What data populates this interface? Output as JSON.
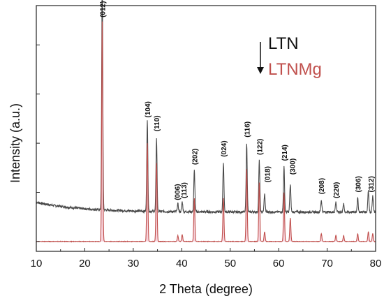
{
  "chart_data": {
    "type": "line",
    "xlabel": "2 Theta (degree)",
    "ylabel": "Intensity (a.u.)",
    "xlim": [
      10,
      80
    ],
    "x_ticks": [
      10,
      20,
      30,
      40,
      50,
      60,
      70,
      80
    ],
    "grid": false,
    "legend_position": "top-right",
    "legend_order_arrow": "down",
    "series": [
      {
        "name": "LTN",
        "color": "#4a4a4a",
        "baseline": 0.15,
        "peaks": [
          {
            "x": 23.6,
            "h": 1.18
          },
          {
            "x": 32.9,
            "h": 0.46
          },
          {
            "x": 34.8,
            "h": 0.37
          },
          {
            "x": 39.2,
            "h": 0.04
          },
          {
            "x": 40.1,
            "h": 0.05
          },
          {
            "x": 42.6,
            "h": 0.21
          },
          {
            "x": 48.6,
            "h": 0.25
          },
          {
            "x": 53.4,
            "h": 0.35
          },
          {
            "x": 56.0,
            "h": 0.26
          },
          {
            "x": 57.1,
            "h": 0.09
          },
          {
            "x": 61.1,
            "h": 0.23
          },
          {
            "x": 62.4,
            "h": 0.14
          },
          {
            "x": 68.8,
            "h": 0.06
          },
          {
            "x": 71.8,
            "h": 0.05
          },
          {
            "x": 73.4,
            "h": 0.04
          },
          {
            "x": 76.3,
            "h": 0.07
          },
          {
            "x": 78.5,
            "h": 0.11
          },
          {
            "x": 79.4,
            "h": 0.08
          }
        ]
      },
      {
        "name": "LTNMg",
        "color": "#c0504d",
        "fill": "#f4c6d2",
        "baseline": 0.0,
        "peaks": [
          {
            "x": 23.6,
            "h": 1.12
          },
          {
            "x": 32.9,
            "h": 0.5
          },
          {
            "x": 34.8,
            "h": 0.4
          },
          {
            "x": 39.2,
            "h": 0.03
          },
          {
            "x": 40.1,
            "h": 0.035
          },
          {
            "x": 42.6,
            "h": 0.22
          },
          {
            "x": 48.6,
            "h": 0.22
          },
          {
            "x": 53.4,
            "h": 0.37
          },
          {
            "x": 56.0,
            "h": 0.3
          },
          {
            "x": 57.1,
            "h": 0.05
          },
          {
            "x": 61.1,
            "h": 0.25
          },
          {
            "x": 62.4,
            "h": 0.12
          },
          {
            "x": 68.8,
            "h": 0.04
          },
          {
            "x": 71.8,
            "h": 0.03
          },
          {
            "x": 73.4,
            "h": 0.03
          },
          {
            "x": 76.3,
            "h": 0.04
          },
          {
            "x": 78.5,
            "h": 0.05
          },
          {
            "x": 79.4,
            "h": 0.04
          }
        ]
      }
    ],
    "peak_labels": [
      {
        "text": "(012)",
        "x": 23.6,
        "y": 1.14
      },
      {
        "text": "(104)",
        "x": 32.9,
        "y": 0.63
      },
      {
        "text": "(110)",
        "x": 34.8,
        "y": 0.56
      },
      {
        "text": "(006)",
        "x": 39.0,
        "y": 0.21
      },
      {
        "text": "(113)",
        "x": 40.4,
        "y": 0.22
      },
      {
        "text": "(202)",
        "x": 42.6,
        "y": 0.39
      },
      {
        "text": "(024)",
        "x": 48.6,
        "y": 0.43
      },
      {
        "text": "(116)",
        "x": 53.4,
        "y": 0.53
      },
      {
        "text": "(122)",
        "x": 56.0,
        "y": 0.44
      },
      {
        "text": "(018)",
        "x": 57.6,
        "y": 0.3
      },
      {
        "text": "(214)",
        "x": 61.1,
        "y": 0.41
      },
      {
        "text": "(300)",
        "x": 62.8,
        "y": 0.34
      },
      {
        "text": "(208)",
        "x": 68.8,
        "y": 0.24
      },
      {
        "text": "(220)",
        "x": 71.8,
        "y": 0.22
      },
      {
        "text": "(306)",
        "x": 76.3,
        "y": 0.25
      },
      {
        "text": "(312)",
        "x": 79.0,
        "y": 0.25
      }
    ]
  }
}
